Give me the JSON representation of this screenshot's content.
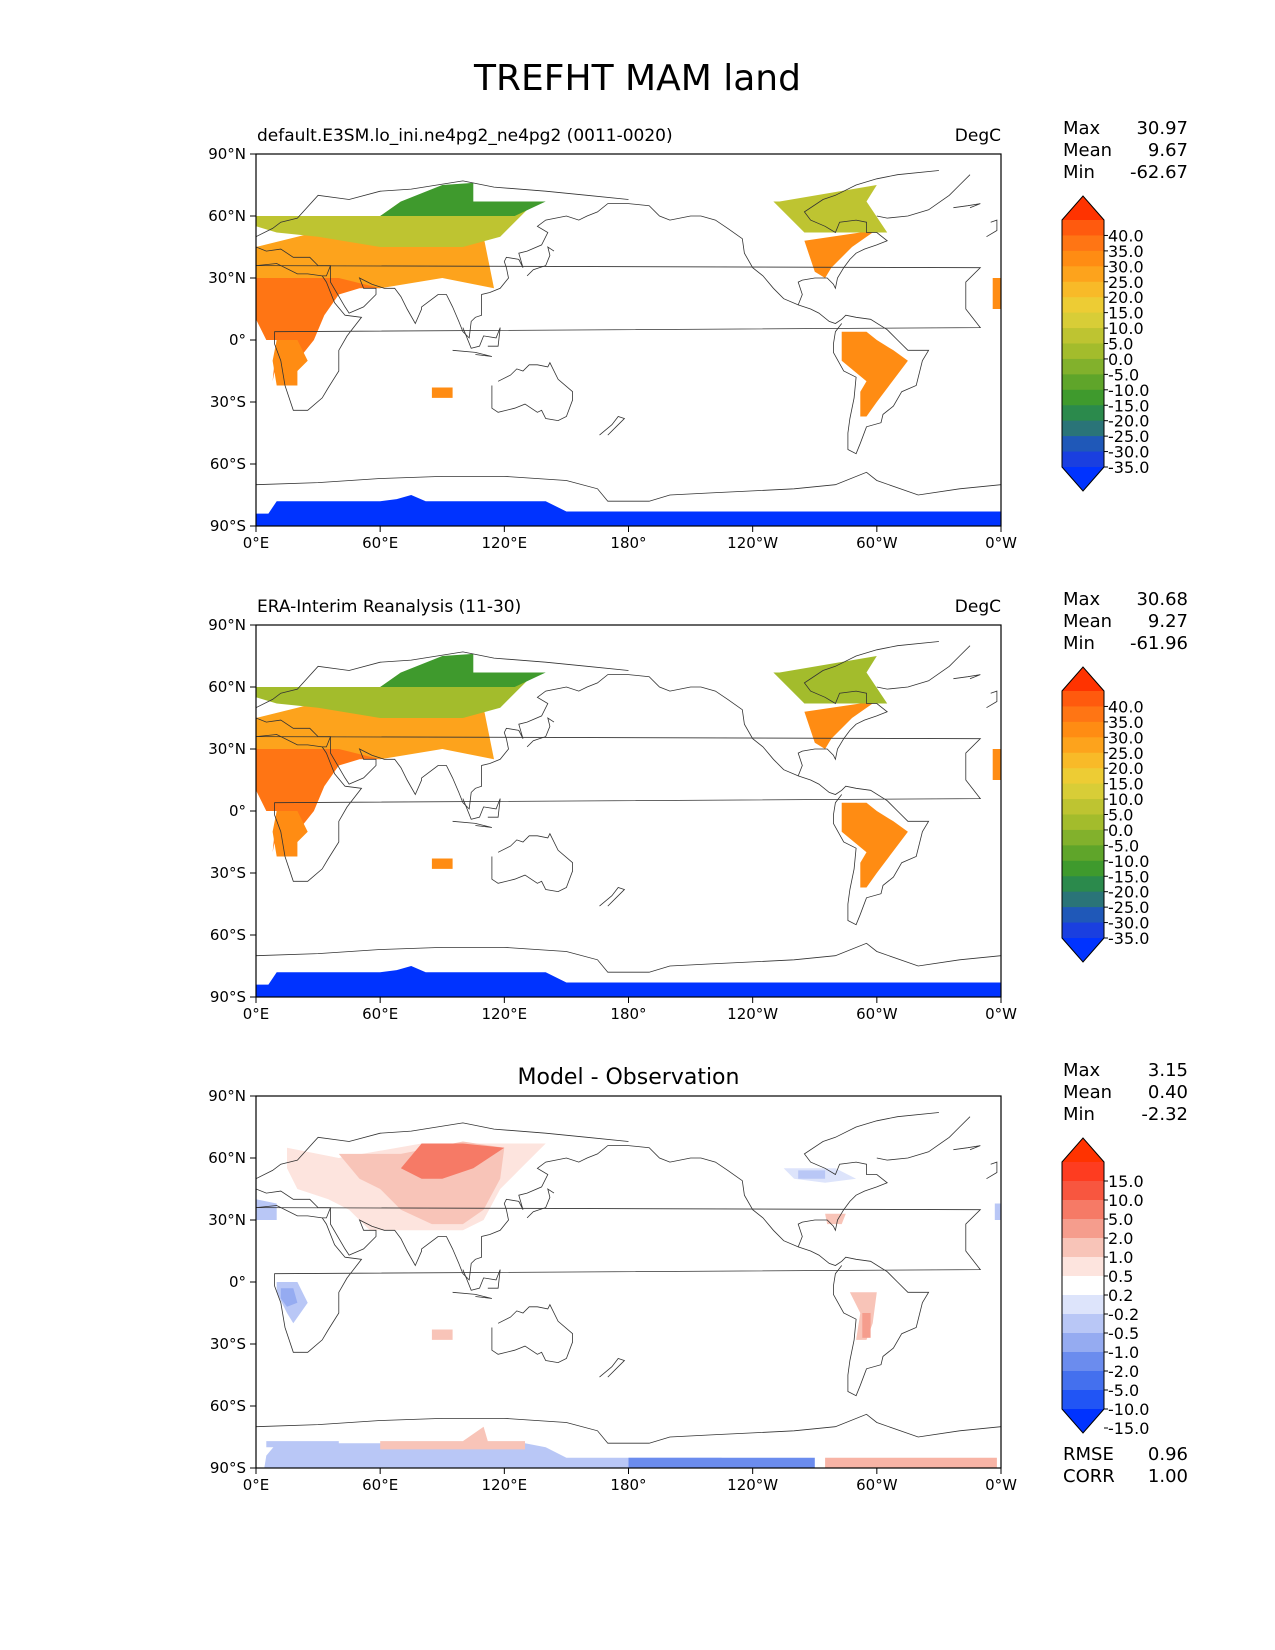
{
  "figure_title": "TREFHT MAM land",
  "x_ticks": [
    "0°E",
    "60°E",
    "120°E",
    "180°",
    "120°W",
    "60°W",
    "0°W"
  ],
  "y_ticks": [
    "90°N",
    "60°N",
    "30°N",
    "0°",
    "30°S",
    "60°S",
    "90°S"
  ],
  "stat_labels": {
    "max": "Max",
    "mean": "Mean",
    "min": "Min",
    "rmse": "RMSE",
    "corr": "CORR"
  },
  "panels": [
    {
      "title_left": "default.E3SM.lo_ini.ne4pg2_ne4pg2 (0011-0020)",
      "title_center": "",
      "units": "DegC",
      "stats": {
        "max": "30.97",
        "mean": "9.67",
        "min": "-62.67"
      },
      "colorbar": {
        "levels": [
          "40.0",
          "35.0",
          "30.0",
          "25.0",
          "20.0",
          "15.0",
          "10.0",
          "5.0",
          "0.0",
          "-5.0",
          "-10.0",
          "-15.0",
          "-20.0",
          "-25.0",
          "-30.0",
          "-35.0"
        ],
        "colors": [
          "#ff3300",
          "#ff5a0e",
          "#ff7514",
          "#ff8c13",
          "#fda31c",
          "#f8ba28",
          "#edcc34",
          "#d8cd37",
          "#bec431",
          "#a3bc2c",
          "#82b12c",
          "#5fa52a",
          "#3f9a2d",
          "#2b8a4c",
          "#2a7478",
          "#1f58b8",
          "#1a3fe0",
          "#0033ff"
        ]
      },
      "map_colors": {
        "antarctica": "#0033ff",
        "eurasia_band": "#bec431",
        "tropics": "#fb8c13"
      }
    },
    {
      "title_left": "ERA-Interim Reanalysis (11-30)",
      "title_center": "",
      "units": "DegC",
      "stats": {
        "max": "30.68",
        "mean": "9.27",
        "min": "-61.96"
      },
      "colorbar": {
        "levels": [
          "40.0",
          "35.0",
          "30.0",
          "25.0",
          "20.0",
          "15.0",
          "10.0",
          "5.0",
          "0.0",
          "-5.0",
          "-10.0",
          "-15.0",
          "-20.0",
          "-25.0",
          "-30.0",
          "-35.0"
        ],
        "colors": [
          "#ff3300",
          "#ff5a0e",
          "#ff7514",
          "#ff8c13",
          "#fda31c",
          "#f8ba28",
          "#edcc34",
          "#d8cd37",
          "#bec431",
          "#a3bc2c",
          "#82b12c",
          "#5fa52a",
          "#3f9a2d",
          "#2b8a4c",
          "#2a7478",
          "#1f58b8",
          "#1a3fe0",
          "#0033ff"
        ]
      },
      "map_colors": {
        "antarctica": "#0033ff",
        "eurasia_band": "#a3bc2c",
        "tropics": "#fb8c13"
      }
    },
    {
      "title_left": "",
      "title_center": "Model - Observation",
      "units": "",
      "stats": {
        "max": "3.15",
        "mean": "0.40",
        "min": "-2.32",
        "rmse": "0.96",
        "corr": "1.00"
      },
      "colorbar": {
        "levels": [
          "15.0",
          "10.0",
          "5.0",
          "2.0",
          "1.0",
          "0.5",
          "0.2",
          "-0.2",
          "-0.5",
          "-1.0",
          "-2.0",
          "-5.0",
          "-10.0",
          "-15.0"
        ],
        "colors": [
          "#ff3300",
          "#fe3c20",
          "#f8563f",
          "#f67a66",
          "#f59d8d",
          "#f8c4b8",
          "#fde4de",
          "#ffffff",
          "#dde4fb",
          "#b9c7f6",
          "#95abf1",
          "#6b8cee",
          "#4470ee",
          "#2155f5",
          "#0033ff"
        ]
      },
      "map_colors": {
        "antarctica_neg": "#b9c7f6",
        "eurasia_pos": "#f59d8d",
        "pacific_neg": "#6b8cee",
        "atlantic_pos": "#f8b4a6"
      }
    }
  ]
}
